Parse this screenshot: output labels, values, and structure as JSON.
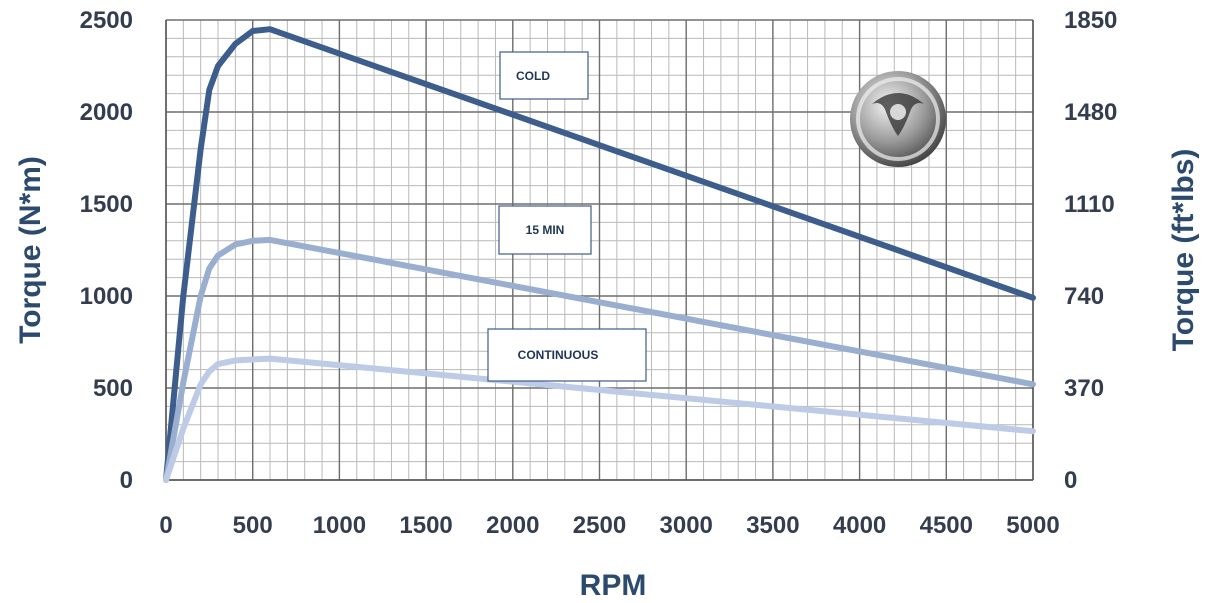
{
  "chart_data": {
    "type": "line",
    "xlabel": "RPM",
    "ylabel": "Torque (N*m)",
    "y2label": "Torque (ft*lbs)",
    "xlim": [
      0,
      5000
    ],
    "ylim": [
      0,
      2500
    ],
    "y2lim": [
      0,
      1850
    ],
    "x_ticks": [
      "0",
      "500",
      "1000",
      "1500",
      "2000",
      "2500",
      "3000",
      "3500",
      "4000",
      "4500",
      "5000"
    ],
    "y_ticks": [
      "0",
      "500",
      "1000",
      "1500",
      "2000",
      "2500"
    ],
    "y2_ticks": [
      "0",
      "370",
      "740",
      "1110",
      "1480",
      "1850"
    ],
    "grid": true,
    "series": [
      {
        "name": "COLD",
        "color": "#3d5d8c",
        "x": [
          0,
          100,
          200,
          250,
          300,
          400,
          500,
          600,
          5000
        ],
        "y": [
          0,
          1000,
          1800,
          2120,
          2250,
          2370,
          2440,
          2450,
          990
        ]
      },
      {
        "name": "15 MIN",
        "color": "#9aaed0",
        "x": [
          0,
          100,
          200,
          250,
          300,
          400,
          500,
          600,
          5000
        ],
        "y": [
          0,
          530,
          1000,
          1150,
          1220,
          1280,
          1300,
          1305,
          520
        ]
      },
      {
        "name": "CONTINUOUS",
        "color": "#bdcbe6",
        "x": [
          0,
          100,
          200,
          250,
          300,
          400,
          500,
          600,
          5000
        ],
        "y": [
          0,
          280,
          520,
          590,
          630,
          650,
          655,
          660,
          265
        ]
      }
    ],
    "annotations": [
      "COLD",
      "15 MIN",
      "CONTINUOUS"
    ]
  },
  "logo": {
    "name": "emblem-logo"
  }
}
